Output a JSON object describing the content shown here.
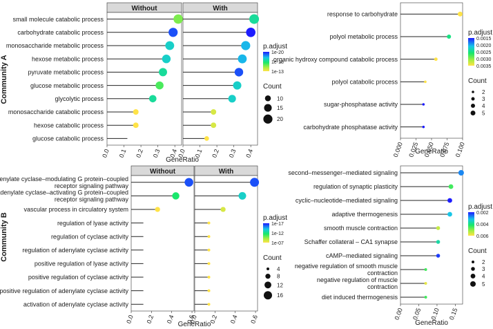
{
  "colors": {
    "low": "#1d1cff",
    "mid": "#19e86a",
    "high": "#ffe347",
    "strip": "#d9d9d9",
    "stick": "#222222"
  },
  "row_labels": [
    "Community A",
    "Community B"
  ],
  "x_axis_label": "GeneRatio",
  "legend_titles": {
    "padjust": "p.adjust",
    "count": "Count"
  },
  "chart_data": [
    {
      "id": "A_left",
      "type": "lollipop",
      "facets": [
        "Without",
        "With"
      ],
      "xlabel": "GeneRatio",
      "xticks": [
        "0.0",
        "0.1",
        "0.2",
        "0.3",
        "0.4"
      ],
      "xlim": [
        0,
        0.44
      ],
      "categories": [
        "small molecule catabolic process",
        "carbohydrate catabolic process",
        "monosaccharide metabolic process",
        "hexose metabolic process",
        "pyruvate metabolic process",
        "glucose metabolic process",
        "glycolytic process",
        "monosaccharide catabolic process",
        "hexose catabolic process",
        "glucose catabolic process"
      ],
      "series": [
        {
          "name": "Without",
          "values": [
            0.42,
            0.39,
            0.37,
            0.35,
            0.33,
            0.31,
            0.27,
            0.17,
            0.17,
            0.12
          ],
          "padjust": [
            1e-13,
            1e-20,
            1e-17,
            1e-17,
            1e-16,
            1e-14,
            1e-16,
            1e-10,
            1e-10,
            null
          ],
          "count": [
            21,
            20,
            19,
            18,
            17,
            16,
            14,
            9,
            9,
            6
          ]
        },
        {
          "name": "With",
          "values": [
            0.42,
            0.4,
            0.37,
            0.35,
            0.33,
            0.32,
            0.29,
            0.18,
            0.18,
            0.14
          ],
          "padjust": [
            1e-16,
            1e-21,
            1e-18,
            1e-18,
            1e-20,
            1e-17,
            1e-17,
            1e-11,
            1e-11,
            1e-09
          ],
          "count": [
            22,
            21,
            20,
            19,
            18,
            17,
            15,
            9,
            9,
            7
          ]
        }
      ],
      "legend": {
        "padjust_ticks": [
          "1e-20",
          "1e-18",
          "1e-13"
        ],
        "count_ticks": [
          "10",
          "15",
          "20"
        ]
      }
    },
    {
      "id": "A_right",
      "type": "lollipop",
      "xlabel": "GeneRatio",
      "xticks": [
        "0.000",
        "0.025",
        "0.050",
        "0.075",
        "0.100"
      ],
      "xlim": [
        0,
        0.1
      ],
      "categories": [
        "response to carbohydrate",
        "polyol metabolic process",
        "organic hydroxy compound catabolic process",
        "polyol catabolic process",
        "sugar-phosphatase activity",
        "carbohydrate phosphatase activity"
      ],
      "values": [
        0.096,
        0.078,
        0.057,
        0.04,
        0.037,
        0.037
      ],
      "padjust": [
        0.0035,
        0.0025,
        0.0035,
        0.0035,
        0.0015,
        0.0015
      ],
      "count": [
        5,
        4,
        3,
        2,
        2,
        2
      ],
      "legend": {
        "padjust_ticks": [
          "0.0015",
          "0.0020",
          "0.0025",
          "0.0030",
          "0.0035"
        ],
        "count_ticks": [
          "2",
          "3",
          "4",
          "5"
        ]
      }
    },
    {
      "id": "B_left",
      "type": "lollipop",
      "facets": [
        "Without",
        "With"
      ],
      "xlabel": "GeneRatio",
      "xticks": [
        "0.0",
        "0.2",
        "0.4",
        "0.6"
      ],
      "xlim": [
        0,
        0.62
      ],
      "categories": [
        "adenylate cyclase–modulating G protein–coupled receptor signaling pathway",
        "adenylate cyclase–activating G protein–coupled receptor signaling pathway",
        "vascular process in circulatory system",
        "regulation of lyase activity",
        "regulation of cyclase activity",
        "regulation of adenylate cyclase activity",
        "positive regulation of lyase activity",
        "positive regulation of cyclase activity",
        "positive regulation of adenylate cyclase activity",
        "activation of adenylate cyclase activity"
      ],
      "series": [
        {
          "name": "Without",
          "values": [
            0.57,
            0.44,
            0.26,
            0.12,
            0.12,
            0.12,
            0.12,
            0.12,
            0.12,
            0.12
          ],
          "padjust": [
            1e-17,
            1e-12,
            1e-07,
            null,
            null,
            null,
            null,
            null,
            null,
            null
          ],
          "count": [
            17,
            13,
            8,
            4,
            4,
            4,
            4,
            4,
            4,
            4
          ]
        },
        {
          "name": "With",
          "values": [
            0.59,
            0.47,
            0.28,
            0.14,
            0.14,
            0.14,
            0.14,
            0.14,
            0.14,
            0.14
          ],
          "padjust": [
            1e-17,
            1e-14,
            1e-08,
            1e-07,
            1e-07,
            1e-07,
            1e-07,
            1e-07,
            1e-07,
            1e-07
          ],
          "count": [
            18,
            14,
            8,
            4,
            4,
            4,
            4,
            4,
            4,
            4
          ]
        }
      ],
      "legend": {
        "padjust_ticks": [
          "1e-17",
          "1e-12",
          "1e-07"
        ],
        "count_ticks": [
          "4",
          "8",
          "12",
          "16"
        ]
      }
    },
    {
      "id": "B_right",
      "type": "lollipop",
      "xlabel": "GeneRatio",
      "xticks": [
        "0.00",
        "0.05",
        "0.10",
        "0.15"
      ],
      "xlim": [
        0,
        0.17
      ],
      "categories": [
        "second–messenger–mediated signaling",
        "regulation of synaptic plasticity",
        "cyclic–nucleotide–mediated signaling",
        "adaptive thermogenesis",
        "smooth muscle contraction",
        "Schaffer collateral – CA1 synapse",
        "cAMP–mediated signaling",
        "negative regulation of smooth muscle contraction",
        "negative regulation of muscle contraction",
        "diet induced thermogenesis"
      ],
      "values": [
        0.166,
        0.138,
        0.135,
        0.135,
        0.103,
        0.103,
        0.103,
        0.069,
        0.069,
        0.069
      ],
      "padjust": [
        0.0022,
        0.0045,
        0.0012,
        0.0028,
        0.0058,
        0.0035,
        0.0015,
        0.0045,
        0.0062,
        0.0045
      ],
      "count": [
        5,
        4,
        4,
        4,
        3,
        3,
        3,
        2,
        2,
        2
      ],
      "legend": {
        "padjust_ticks": [
          "0.002",
          "0.004",
          "0.006"
        ],
        "count_ticks": [
          "2",
          "3",
          "4",
          "5"
        ]
      }
    }
  ]
}
